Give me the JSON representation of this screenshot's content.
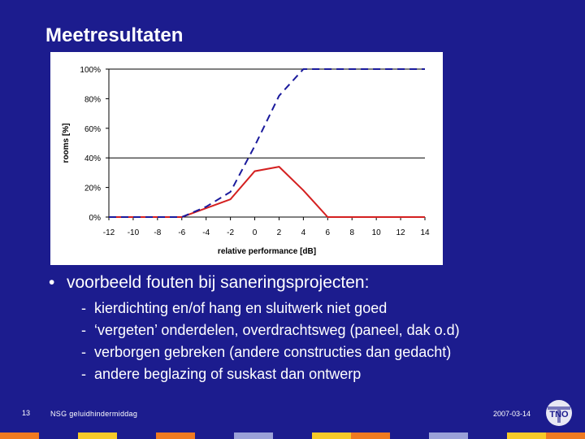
{
  "slide": {
    "title": "Meetresultaten",
    "bullet": "voorbeeld fouten bij saneringsprojecten:",
    "sub_items": [
      "kierdichting en/of hang en sluitwerk niet goed",
      "‘vergeten’ onderdelen, overdrachtsweg (paneel, dak o.d)",
      "verborgen gebreken (andere constructies dan gedacht)",
      "andere beglazing of suskast dan ontwerp"
    ],
    "page_number": "13",
    "footer_text": "NSG geluidhindermiddag",
    "date": "2007-03-14",
    "logo_text": "TNO"
  },
  "colors": {
    "background": "#1c1c8e",
    "chart_background": "#ffffff",
    "red_series": "#d42020",
    "blue_series": "#1a1a9c"
  },
  "chart_data": {
    "type": "line",
    "xlabel": "relative performance [dB]",
    "ylabel": "rooms [%]",
    "xlim": [
      -12,
      14
    ],
    "ylim": [
      0,
      100
    ],
    "x_ticks": [
      -12,
      -10,
      -8,
      -6,
      -4,
      -2,
      0,
      2,
      4,
      6,
      8,
      10,
      12,
      14
    ],
    "y_ticks": [
      "0%",
      "20%",
      "40%",
      "60%",
      "80%",
      "100%"
    ],
    "y_tick_values": [
      0,
      20,
      40,
      60,
      80,
      100
    ],
    "horizontal_gridlines": [
      40,
      100
    ],
    "series": [
      {
        "style": "solid",
        "color": "#d42020",
        "x": [
          -12,
          -10,
          -8,
          -6,
          -4,
          -2,
          0,
          2,
          4,
          6,
          8,
          10,
          12,
          14
        ],
        "y": [
          0,
          0,
          0,
          0,
          6,
          12,
          31,
          34,
          18,
          0,
          0,
          0,
          0,
          0
        ]
      },
      {
        "style": "dashed",
        "color": "#1a1a9c",
        "x": [
          -12,
          -10,
          -8,
          -6,
          -4,
          -2,
          0,
          2,
          4,
          6,
          8,
          10,
          12,
          14
        ],
        "y": [
          0,
          0,
          0,
          0,
          7,
          17,
          48,
          82,
          100,
          100,
          100,
          100,
          100,
          100
        ]
      }
    ]
  },
  "bottom_strip_colors": [
    "#f07a20",
    "#1c1c8e",
    "#f7c928",
    "#1c1c8e",
    "#f07a20",
    "#1c1c8e",
    "#9aa0d8",
    "#1c1c8e",
    "#f7c928",
    "#f07a20",
    "#1c1c8e",
    "#9aa0d8",
    "#1c1c8e",
    "#f7c928",
    "#f07a20"
  ]
}
